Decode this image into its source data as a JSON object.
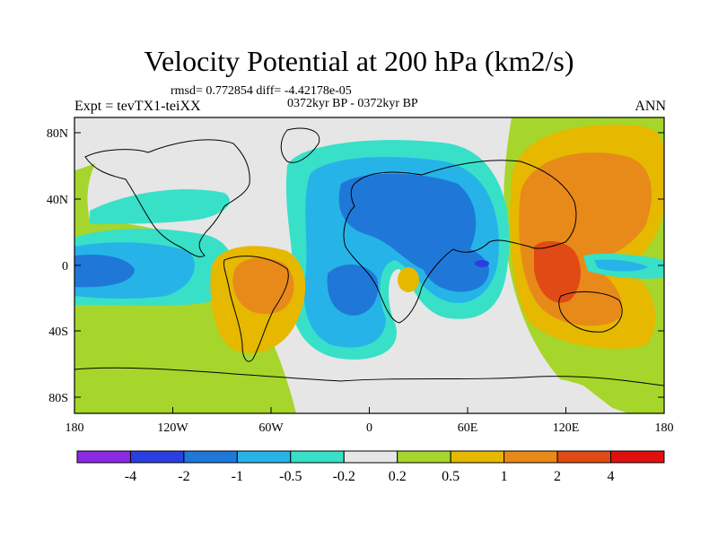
{
  "title": "Velocity Potential at 200 hPa (km2/s)",
  "stats_line": "rmsd= 0.772854 diff= -4.42178e-05",
  "period_line": "0372kyr BP - 0372kyr BP",
  "left_label": "Expt = tevTX1-teiXX",
  "right_label": "ANN",
  "map": {
    "lat_ticks": [
      "80N",
      "40N",
      "0",
      "40S",
      "80S"
    ],
    "lon_ticks": [
      "180",
      "120W",
      "60W",
      "0",
      "60E",
      "120E",
      "180"
    ]
  },
  "colorbar": {
    "colors": [
      "#8a2be2",
      "#2b3fe0",
      "#1f78d8",
      "#26b4e8",
      "#38e0c8",
      "#e6e6e6",
      "#a6d62b",
      "#e6b800",
      "#e88a1a",
      "#e04a14",
      "#e01010"
    ],
    "labels": [
      "-4",
      "-2",
      "-1",
      "-0.5",
      "-0.2",
      "0.2",
      "0.5",
      "1",
      "2",
      "4"
    ]
  }
}
